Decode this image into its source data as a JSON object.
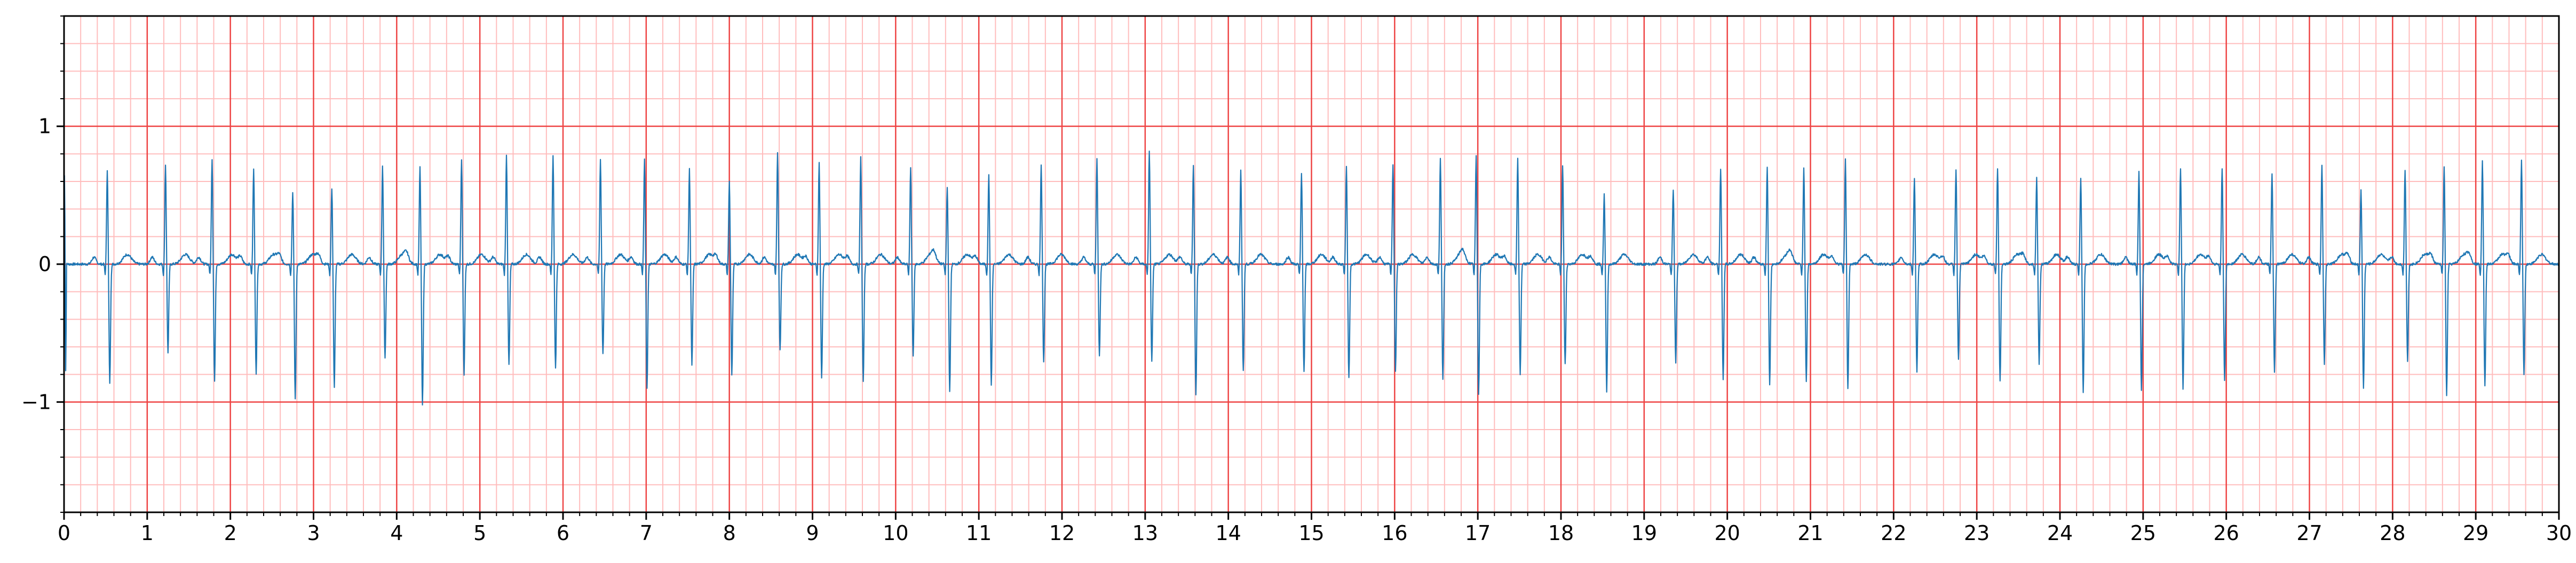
{
  "chart_data": {
    "type": "line",
    "title": "",
    "xlabel": "",
    "ylabel": "",
    "xlim": [
      0,
      30
    ],
    "ylim": [
      -1.8,
      1.8
    ],
    "x_ticks": [
      0,
      1,
      2,
      3,
      4,
      5,
      6,
      7,
      8,
      9,
      10,
      11,
      12,
      13,
      14,
      15,
      16,
      17,
      18,
      19,
      20,
      21,
      22,
      23,
      24,
      25,
      26,
      27,
      28,
      29,
      30
    ],
    "x_tick_labels": [
      "0",
      "1",
      "2",
      "3",
      "4",
      "5",
      "6",
      "7",
      "8",
      "9",
      "10",
      "11",
      "12",
      "13",
      "14",
      "15",
      "16",
      "17",
      "18",
      "19",
      "20",
      "21",
      "22",
      "23",
      "24",
      "25",
      "26",
      "27",
      "28",
      "29",
      "30"
    ],
    "y_ticks": [
      -1,
      0,
      1
    ],
    "y_tick_labels": [
      "−1",
      "0",
      "1"
    ],
    "grid": {
      "major": true,
      "minor": true,
      "major_step_x": 1,
      "minor_step_x": 0.2,
      "major_step_y": 1,
      "minor_step_y": 0.2,
      "major_color": "#ee4444",
      "minor_color": "#ffbdbd"
    },
    "series": [
      {
        "color": "#1f77b4",
        "beats": [
          {
            "t": 0.52,
            "r": 0.69,
            "s": -0.86
          },
          {
            "t": 1.22,
            "r": 0.72,
            "s": -0.64
          },
          {
            "t": 1.78,
            "r": 0.77,
            "s": -0.85
          },
          {
            "t": 2.28,
            "r": 0.7,
            "s": -0.79
          },
          {
            "t": 2.75,
            "r": 0.53,
            "s": -0.98
          },
          {
            "t": 3.22,
            "r": 0.55,
            "s": -0.9
          },
          {
            "t": 3.83,
            "r": 0.72,
            "s": -0.68
          },
          {
            "t": 4.28,
            "r": 0.71,
            "s": -1.03
          },
          {
            "t": 4.78,
            "r": 0.76,
            "s": -0.8
          },
          {
            "t": 5.32,
            "r": 0.8,
            "s": -0.73
          },
          {
            "t": 5.88,
            "r": 0.79,
            "s": -0.75
          },
          {
            "t": 6.45,
            "r": 0.76,
            "s": -0.65
          },
          {
            "t": 6.98,
            "r": 0.76,
            "s": -0.9
          },
          {
            "t": 7.52,
            "r": 0.69,
            "s": -0.73
          },
          {
            "t": 8.0,
            "r": 0.6,
            "s": -0.8
          },
          {
            "t": 8.58,
            "r": 0.82,
            "s": -0.63
          },
          {
            "t": 9.08,
            "r": 0.74,
            "s": -0.83
          },
          {
            "t": 9.58,
            "r": 0.78,
            "s": -0.86
          },
          {
            "t": 10.18,
            "r": 0.7,
            "s": -0.67
          },
          {
            "t": 10.62,
            "r": 0.56,
            "s": -0.93
          },
          {
            "t": 11.12,
            "r": 0.65,
            "s": -0.88
          },
          {
            "t": 11.75,
            "r": 0.73,
            "s": -0.71
          },
          {
            "t": 12.42,
            "r": 0.77,
            "s": -0.66
          },
          {
            "t": 13.05,
            "r": 0.82,
            "s": -0.7
          },
          {
            "t": 13.58,
            "r": 0.72,
            "s": -0.95
          },
          {
            "t": 14.15,
            "r": 0.68,
            "s": -0.78
          },
          {
            "t": 14.88,
            "r": 0.66,
            "s": -0.78
          },
          {
            "t": 15.42,
            "r": 0.72,
            "s": -0.83
          },
          {
            "t": 15.98,
            "r": 0.73,
            "s": -0.78
          },
          {
            "t": 16.55,
            "r": 0.77,
            "s": -0.84
          },
          {
            "t": 16.98,
            "r": 0.79,
            "s": -0.94
          },
          {
            "t": 17.48,
            "r": 0.77,
            "s": -0.8
          },
          {
            "t": 18.02,
            "r": 0.72,
            "s": -0.73
          },
          {
            "t": 18.52,
            "r": 0.51,
            "s": -0.92
          },
          {
            "t": 19.35,
            "r": 0.54,
            "s": -0.71
          },
          {
            "t": 19.92,
            "r": 0.69,
            "s": -0.83
          },
          {
            "t": 20.48,
            "r": 0.71,
            "s": -0.88
          },
          {
            "t": 20.92,
            "r": 0.7,
            "s": -0.85
          },
          {
            "t": 21.42,
            "r": 0.76,
            "s": -0.91
          },
          {
            "t": 22.25,
            "r": 0.63,
            "s": -0.79
          },
          {
            "t": 22.75,
            "r": 0.69,
            "s": -0.7
          },
          {
            "t": 23.25,
            "r": 0.7,
            "s": -0.85
          },
          {
            "t": 23.72,
            "r": 0.63,
            "s": -0.72
          },
          {
            "t": 24.25,
            "r": 0.63,
            "s": -0.93
          },
          {
            "t": 24.95,
            "r": 0.68,
            "s": -0.91
          },
          {
            "t": 25.45,
            "r": 0.7,
            "s": -0.9
          },
          {
            "t": 25.95,
            "r": 0.7,
            "s": -0.85
          },
          {
            "t": 26.55,
            "r": 0.66,
            "s": -0.79
          },
          {
            "t": 27.15,
            "r": 0.72,
            "s": -0.72
          },
          {
            "t": 27.62,
            "r": 0.54,
            "s": -0.9
          },
          {
            "t": 28.15,
            "r": 0.69,
            "s": -0.7
          },
          {
            "t": 28.62,
            "r": 0.71,
            "s": -0.95
          },
          {
            "t": 29.08,
            "r": 0.76,
            "s": -0.88
          },
          {
            "t": 29.55,
            "r": 0.75,
            "s": -0.8
          }
        ],
        "baseline": 0.0
      }
    ]
  }
}
